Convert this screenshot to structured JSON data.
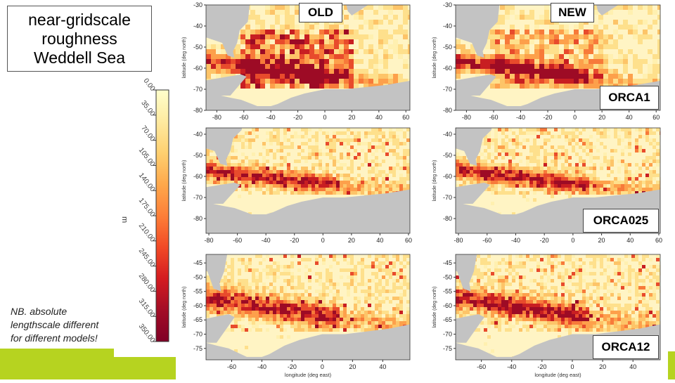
{
  "title": {
    "lines": [
      "near-gridscale",
      "roughness",
      "Weddell Sea"
    ]
  },
  "note": {
    "lines": [
      "NB. absolute",
      "lengthscale different",
      "for different models!"
    ]
  },
  "columns": {
    "old": "OLD",
    "new": "NEW"
  },
  "colorbar": {
    "unit": "m",
    "ticks": [
      "0.00",
      "35.00",
      "70.00",
      "105.00",
      "140.00",
      "175.00",
      "210.00",
      "245.00",
      "280.00",
      "315.00",
      "350.00"
    ],
    "range": [
      0,
      350
    ],
    "colors": [
      "#ffffcc",
      "#feeaa0",
      "#fed070",
      "#fea84b",
      "#fd7f38",
      "#f24a26",
      "#d41c20",
      "#a30d26",
      "#800026"
    ]
  },
  "chart_data": [
    {
      "type": "heatmap",
      "model": "ORCA1",
      "version": "OLD",
      "xlabel": "",
      "ylabel": "latitude (deg north)",
      "xticks": [
        -80,
        -60,
        -40,
        -20,
        0,
        20,
        40,
        60
      ],
      "yticks": [
        -30,
        -40,
        -50,
        -60,
        -70,
        -80
      ],
      "xlim": [
        -88,
        63
      ],
      "ylim": [
        -80,
        -30
      ]
    },
    {
      "type": "heatmap",
      "model": "ORCA1",
      "version": "NEW",
      "xlabel": "",
      "ylabel": "latitude (deg north)",
      "xticks": [
        -80,
        -60,
        -40,
        -20,
        0,
        20,
        40,
        60
      ],
      "yticks": [
        -30,
        -40,
        -50,
        -60,
        -70,
        -80
      ],
      "xlim": [
        -88,
        63
      ],
      "ylim": [
        -80,
        -30
      ],
      "label": "ORCA1"
    },
    {
      "type": "heatmap",
      "model": "ORCA025",
      "version": "OLD",
      "xlabel": "",
      "ylabel": "latitude (deg north)",
      "xticks": [
        -80,
        -60,
        -40,
        -20,
        0,
        20,
        40,
        60
      ],
      "yticks": [
        -40,
        -50,
        -60,
        -70,
        -80
      ],
      "xlim": [
        -82,
        61
      ],
      "ylim": [
        -87,
        -37
      ]
    },
    {
      "type": "heatmap",
      "model": "ORCA025",
      "version": "NEW",
      "xlabel": "",
      "ylabel": "latitude (deg north)",
      "xticks": [
        -80,
        -60,
        -40,
        -20,
        0,
        20,
        40,
        60
      ],
      "yticks": [
        -40,
        -50,
        -60,
        -70,
        -80
      ],
      "xlim": [
        -82,
        61
      ],
      "ylim": [
        -87,
        -37
      ],
      "label": "ORCA025"
    },
    {
      "type": "heatmap",
      "model": "ORCA12",
      "version": "OLD",
      "xlabel": "longitude (deg east)",
      "ylabel": "latitude (deg north)",
      "xticks": [
        -60,
        -40,
        -20,
        0,
        20,
        40
      ],
      "yticks": [
        -45,
        -50,
        -55,
        -60,
        -65,
        -70,
        -75
      ],
      "xlim": [
        -77,
        58
      ],
      "ylim": [
        -79,
        -42
      ]
    },
    {
      "type": "heatmap",
      "model": "ORCA12",
      "version": "NEW",
      "xlabel": "longitude (deg east)",
      "ylabel": "latitude (deg north)",
      "xticks": [
        -60,
        -40,
        -20,
        0,
        20,
        40
      ],
      "yticks": [
        -45,
        -50,
        -55,
        -60,
        -65,
        -70,
        -75
      ],
      "xlim": [
        -77,
        58
      ],
      "ylim": [
        -79,
        -42
      ],
      "label": "ORCA12"
    }
  ]
}
